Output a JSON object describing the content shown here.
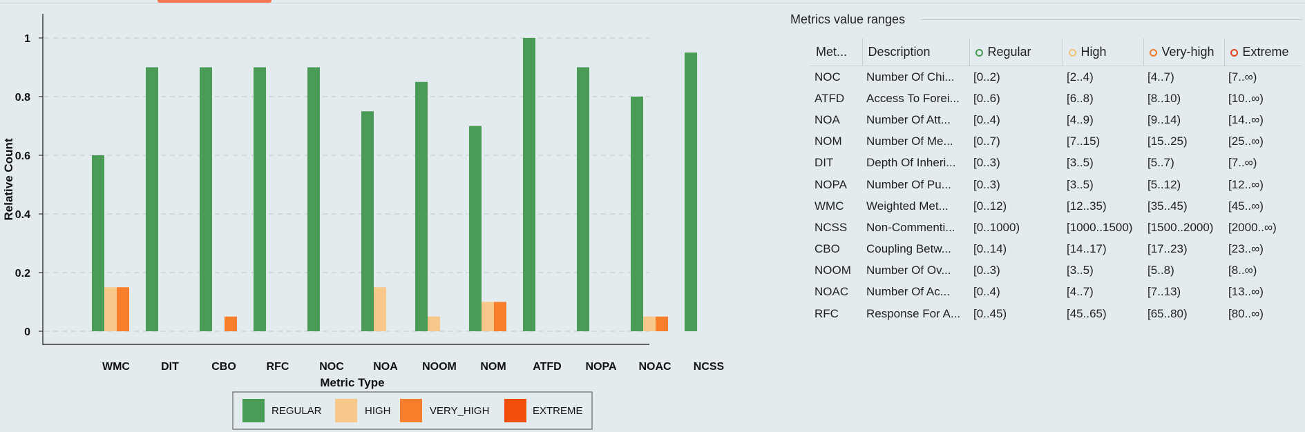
{
  "chart_data": {
    "type": "bar",
    "title": "",
    "xlabel": "Metric Type",
    "ylabel": "Relative Count",
    "ylim": [
      0,
      1.05
    ],
    "yticks": [
      0,
      0.2,
      0.4,
      0.6,
      0.8,
      1
    ],
    "ytick_labels": [
      "0",
      "0.2",
      "0.4",
      "0.6",
      "0.8",
      "1"
    ],
    "grid": "horizontal dashed",
    "legend_position": "bottom-center",
    "categories": [
      "WMC",
      "DIT",
      "CBO",
      "RFC",
      "NOC",
      "NOA",
      "NOOM",
      "NOM",
      "ATFD",
      "NOPA",
      "NOAC",
      "NCSS"
    ],
    "series": [
      {
        "name": "REGULAR",
        "color": "#4a9b55",
        "values": [
          0.6,
          0.9,
          0.9,
          0.9,
          0.9,
          0.75,
          0.85,
          0.7,
          1.0,
          0.9,
          0.8,
          0.95
        ]
      },
      {
        "name": "HIGH",
        "color": "#f8c78a",
        "values": [
          0.15,
          0,
          0,
          0,
          0,
          0.15,
          0.05,
          0.1,
          0,
          0,
          0.05,
          0
        ]
      },
      {
        "name": "VERY_HIGH",
        "color": "#f97e2c",
        "values": [
          0.15,
          0,
          0.05,
          0,
          0,
          0,
          0,
          0.1,
          0,
          0,
          0.05,
          0
        ]
      },
      {
        "name": "EXTREME",
        "color": "#f24f0c",
        "values": [
          0,
          0,
          0,
          0,
          0,
          0,
          0,
          0,
          0,
          0,
          0,
          0
        ]
      }
    ]
  },
  "ranges": {
    "title": "Metrics value ranges",
    "headers": [
      "Met...",
      "Description",
      "Regular",
      "High",
      "Very-high",
      "Extreme"
    ],
    "header_circle_colors": [
      "#4a9b55",
      "#f2c37a",
      "#f07a2a",
      "#e0441a"
    ],
    "rows": [
      [
        "NOC",
        "Number Of Chi...",
        "[0..2)",
        "[2..4)",
        "[4..7)",
        "[7..∞)"
      ],
      [
        "ATFD",
        "Access To Forei...",
        "[0..6)",
        "[6..8)",
        "[8..10)",
        "[10..∞)"
      ],
      [
        "NOA",
        "Number Of Att...",
        "[0..4)",
        "[4..9)",
        "[9..14)",
        "[14..∞)"
      ],
      [
        "NOM",
        "Number Of Me...",
        "[0..7)",
        "[7..15)",
        "[15..25)",
        "[25..∞)"
      ],
      [
        "DIT",
        "Depth Of Inheri...",
        "[0..3)",
        "[3..5)",
        "[5..7)",
        "[7..∞)"
      ],
      [
        "NOPA",
        "Number Of Pu...",
        "[0..3)",
        "[3..5)",
        "[5..12)",
        "[12..∞)"
      ],
      [
        "WMC",
        "Weighted Met...",
        "[0..12)",
        "[12..35)",
        "[35..45)",
        "[45..∞)"
      ],
      [
        "NCSS",
        "Non-Commenti...",
        "[0..1000)",
        "[1000..1500)",
        "[1500..2000)",
        "[2000..∞)"
      ],
      [
        "CBO",
        "Coupling Betw...",
        "[0..14)",
        "[14..17)",
        "[17..23)",
        "[23..∞)"
      ],
      [
        "NOOM",
        "Number Of Ov...",
        "[0..3)",
        "[3..5)",
        "[5..8)",
        "[8..∞)"
      ],
      [
        "NOAC",
        "Number Of Ac...",
        "[0..4)",
        "[4..7)",
        "[7..13)",
        "[13..∞)"
      ],
      [
        "RFC",
        "Response For A...",
        "[0..45)",
        "[45..65)",
        "[65..80)",
        "[80..∞)"
      ]
    ]
  }
}
